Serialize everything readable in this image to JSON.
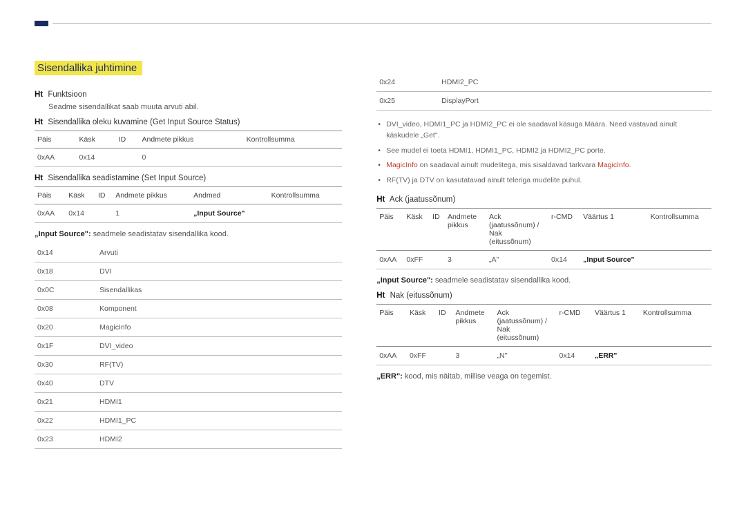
{
  "section_title": "Sisendallika juhtimine",
  "left": {
    "func_label": "Ht",
    "func_text": "Funktsioon",
    "func_sub": "Seadme sisendallikat saab muuta arvuti abil.",
    "get_label": "Ht",
    "get_text": "Sisendallika oleku kuvamine (Get Input Source Status)",
    "tbl1": {
      "headers": [
        "Päis",
        "Käsk",
        "ID",
        "Andmete pikkus",
        "Kontrollsumma"
      ],
      "row": [
        "0xAA",
        "0x14",
        "",
        "0",
        ""
      ]
    },
    "set_label": "Ht",
    "set_text": "Sisendallika seadistamine (Set Input Source)",
    "tbl2": {
      "headers": [
        "Päis",
        "Käsk",
        "ID",
        "Andmete pikkus",
        "Andmed",
        "Kontrollsumma"
      ],
      "row": [
        "0xAA",
        "0x14",
        "",
        "1",
        "„Input Source\"",
        ""
      ]
    },
    "input_source_note_bold": "„Input Source\":",
    "input_source_note_rest": " seadmele seadistatav sisendallika kood.",
    "codes": [
      [
        "0x14",
        "Arvuti"
      ],
      [
        "0x18",
        "DVI"
      ],
      [
        "0x0C",
        "Sisendallikas"
      ],
      [
        "0x08",
        "Komponent"
      ],
      [
        "0x20",
        "MagicInfo"
      ],
      [
        "0x1F",
        "DVI_video"
      ],
      [
        "0x30",
        "RF(TV)"
      ],
      [
        "0x40",
        "DTV"
      ],
      [
        "0x21",
        "HDMI1"
      ],
      [
        "0x22",
        "HDMI1_PC"
      ],
      [
        "0x23",
        "HDMI2"
      ]
    ]
  },
  "right": {
    "codes_tail": [
      [
        "0x24",
        "HDMI2_PC"
      ],
      [
        "0x25",
        "DisplayPort"
      ]
    ],
    "bullets": [
      {
        "pre": "DVI_video, HDMI1_PC ja HDMI2_PC ei ole saadaval käsuga Määra. Need vastavad ainult käskudele „Get\"."
      },
      {
        "pre": "See mudel ei toeta HDMI1, HDMI1_PC, HDMI2 ja HDMI2_PC porte."
      },
      {
        "pre_red": "MagicInfo",
        "mid": " on saadaval ainult mudelitega, mis sisaldavad tarkvara ",
        "post_red": "MagicInfo",
        "end": "."
      },
      {
        "pre": "RF(TV) ja DTV on kasutatavad ainult teleriga mudelite puhul."
      }
    ],
    "ack_label": "Ht",
    "ack_text": "Ack (jaatussõnum)",
    "tbl_ack": {
      "headers": [
        "Päis",
        "Käsk",
        "ID",
        "Andmete pikkus",
        "Ack (jaatussõnum) / Nak (eitussõnum)",
        "r-CMD",
        "Väärtus 1",
        "Kontrollsumma"
      ],
      "row": [
        "0xAA",
        "0xFF",
        "",
        "3",
        "„A\"",
        "0x14",
        "„Input Source\"",
        ""
      ]
    },
    "input_source_note_bold": "„Input Source\":",
    "input_source_note_rest": " seadmele seadistatav sisendallika kood.",
    "nak_label": "Ht",
    "nak_text": "Nak (eitussõnum)",
    "tbl_nak": {
      "headers": [
        "Päis",
        "Käsk",
        "ID",
        "Andmete pikkus",
        "Ack (jaatussõnum) / Nak (eitussõnum)",
        "r-CMD",
        "Väärtus 1",
        "Kontrollsumma"
      ],
      "row": [
        "0xAA",
        "0xFF",
        "",
        "3",
        "„N\"",
        "0x14",
        "„ERR\"",
        ""
      ]
    },
    "err_bold": "„ERR\":",
    "err_rest": " kood, mis näitab, millise veaga on tegemist."
  }
}
